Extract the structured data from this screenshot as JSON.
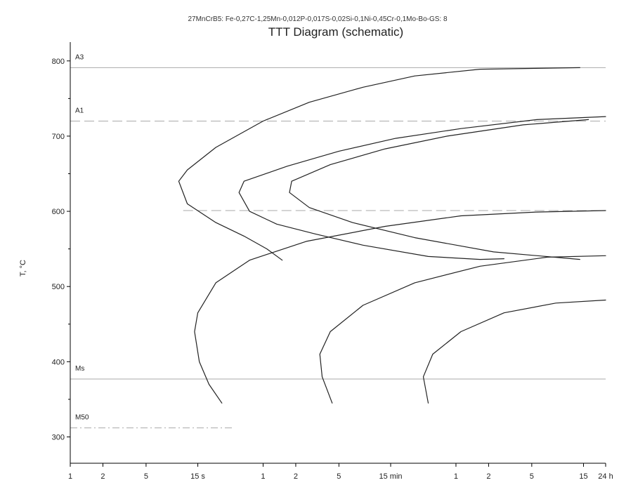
{
  "chart_data": {
    "type": "line",
    "supertitle": "27MnCrB5: Fe-0,27C-1,25Mn-0,012P-0,017S-0,02Si-0,1Ni-0,45Cr-0,1Mo-Bo-GS: 8",
    "title": "TTT Diagram (schematic)",
    "xlabel": "",
    "ylabel": "T, °C",
    "xscale": "log",
    "x_unit": "seconds",
    "xlim": [
      1,
      86400
    ],
    "ylim": [
      270,
      825
    ],
    "grid": false,
    "y_ticks": [
      300,
      400,
      500,
      600,
      700,
      800
    ],
    "x_ticks": [
      {
        "value": 1,
        "label": "1"
      },
      {
        "value": 2,
        "label": "2"
      },
      {
        "value": 5,
        "label": "5"
      },
      {
        "value": 15,
        "label": "15 s"
      },
      {
        "value": 60,
        "label": "1"
      },
      {
        "value": 120,
        "label": "2"
      },
      {
        "value": 300,
        "label": "5"
      },
      {
        "value": 900,
        "label": "15 min"
      },
      {
        "value": 3600,
        "label": "1"
      },
      {
        "value": 7200,
        "label": "2"
      },
      {
        "value": 18000,
        "label": "5"
      },
      {
        "value": 54000,
        "label": "15"
      },
      {
        "value": 86400,
        "label": "24 h"
      }
    ],
    "reference_lines": [
      {
        "label": "A3",
        "y": 791,
        "style": "solid",
        "x_start": 1
      },
      {
        "label": "A1",
        "y": 720,
        "style": "dashed",
        "x_start": 1
      },
      {
        "label": "",
        "y": 601,
        "style": "dashed",
        "x_start": 11
      },
      {
        "label": "Ms",
        "y": 377,
        "style": "solid",
        "x_start": 1
      },
      {
        "label": "M50",
        "y": 312,
        "style": "dashdot",
        "x_start": 1,
        "x_end": 32
      }
    ],
    "series": [
      {
        "values": [
          [
            50000,
            791
          ],
          [
            6000,
            789
          ],
          [
            1500,
            780
          ],
          [
            500,
            765
          ],
          [
            160,
            745
          ],
          [
            60,
            720
          ],
          [
            22,
            685
          ],
          [
            12,
            655
          ],
          [
            10,
            640
          ],
          [
            12,
            610
          ],
          [
            22,
            585
          ],
          [
            40,
            567
          ],
          [
            65,
            550
          ],
          [
            90,
            535
          ]
        ]
      },
      {
        "values": [
          [
            86400,
            726
          ],
          [
            20000,
            722
          ],
          [
            4000,
            710
          ],
          [
            1000,
            697
          ],
          [
            300,
            680
          ],
          [
            100,
            660
          ],
          [
            40,
            640
          ],
          [
            36,
            625
          ],
          [
            45,
            600
          ],
          [
            80,
            583
          ],
          [
            180,
            570
          ],
          [
            500,
            555
          ],
          [
            2000,
            540
          ],
          [
            6000,
            536
          ],
          [
            10000,
            537
          ]
        ]
      },
      {
        "values": [
          [
            60000,
            722
          ],
          [
            15000,
            715
          ],
          [
            3000,
            700
          ],
          [
            800,
            683
          ],
          [
            250,
            662
          ],
          [
            110,
            640
          ],
          [
            105,
            625
          ],
          [
            160,
            605
          ],
          [
            400,
            585
          ],
          [
            1500,
            565
          ],
          [
            8000,
            546
          ],
          [
            50000,
            536
          ]
        ]
      },
      {
        "values": [
          [
            86400,
            601
          ],
          [
            20000,
            599
          ],
          [
            4000,
            594
          ],
          [
            800,
            580
          ],
          [
            150,
            560
          ],
          [
            45,
            535
          ],
          [
            22,
            505
          ],
          [
            15,
            465
          ],
          [
            14,
            440
          ],
          [
            15.5,
            400
          ],
          [
            19,
            370
          ],
          [
            25,
            345
          ]
        ]
      },
      {
        "values": [
          [
            86400,
            541
          ],
          [
            25000,
            539
          ],
          [
            6000,
            527
          ],
          [
            1500,
            505
          ],
          [
            500,
            475
          ],
          [
            250,
            440
          ],
          [
            200,
            410
          ],
          [
            210,
            380
          ],
          [
            260,
            345
          ]
        ]
      },
      {
        "values": [
          [
            86400,
            482
          ],
          [
            30000,
            478
          ],
          [
            10000,
            465
          ],
          [
            4000,
            440
          ],
          [
            2200,
            410
          ],
          [
            1800,
            380
          ],
          [
            2000,
            345
          ]
        ]
      }
    ]
  }
}
